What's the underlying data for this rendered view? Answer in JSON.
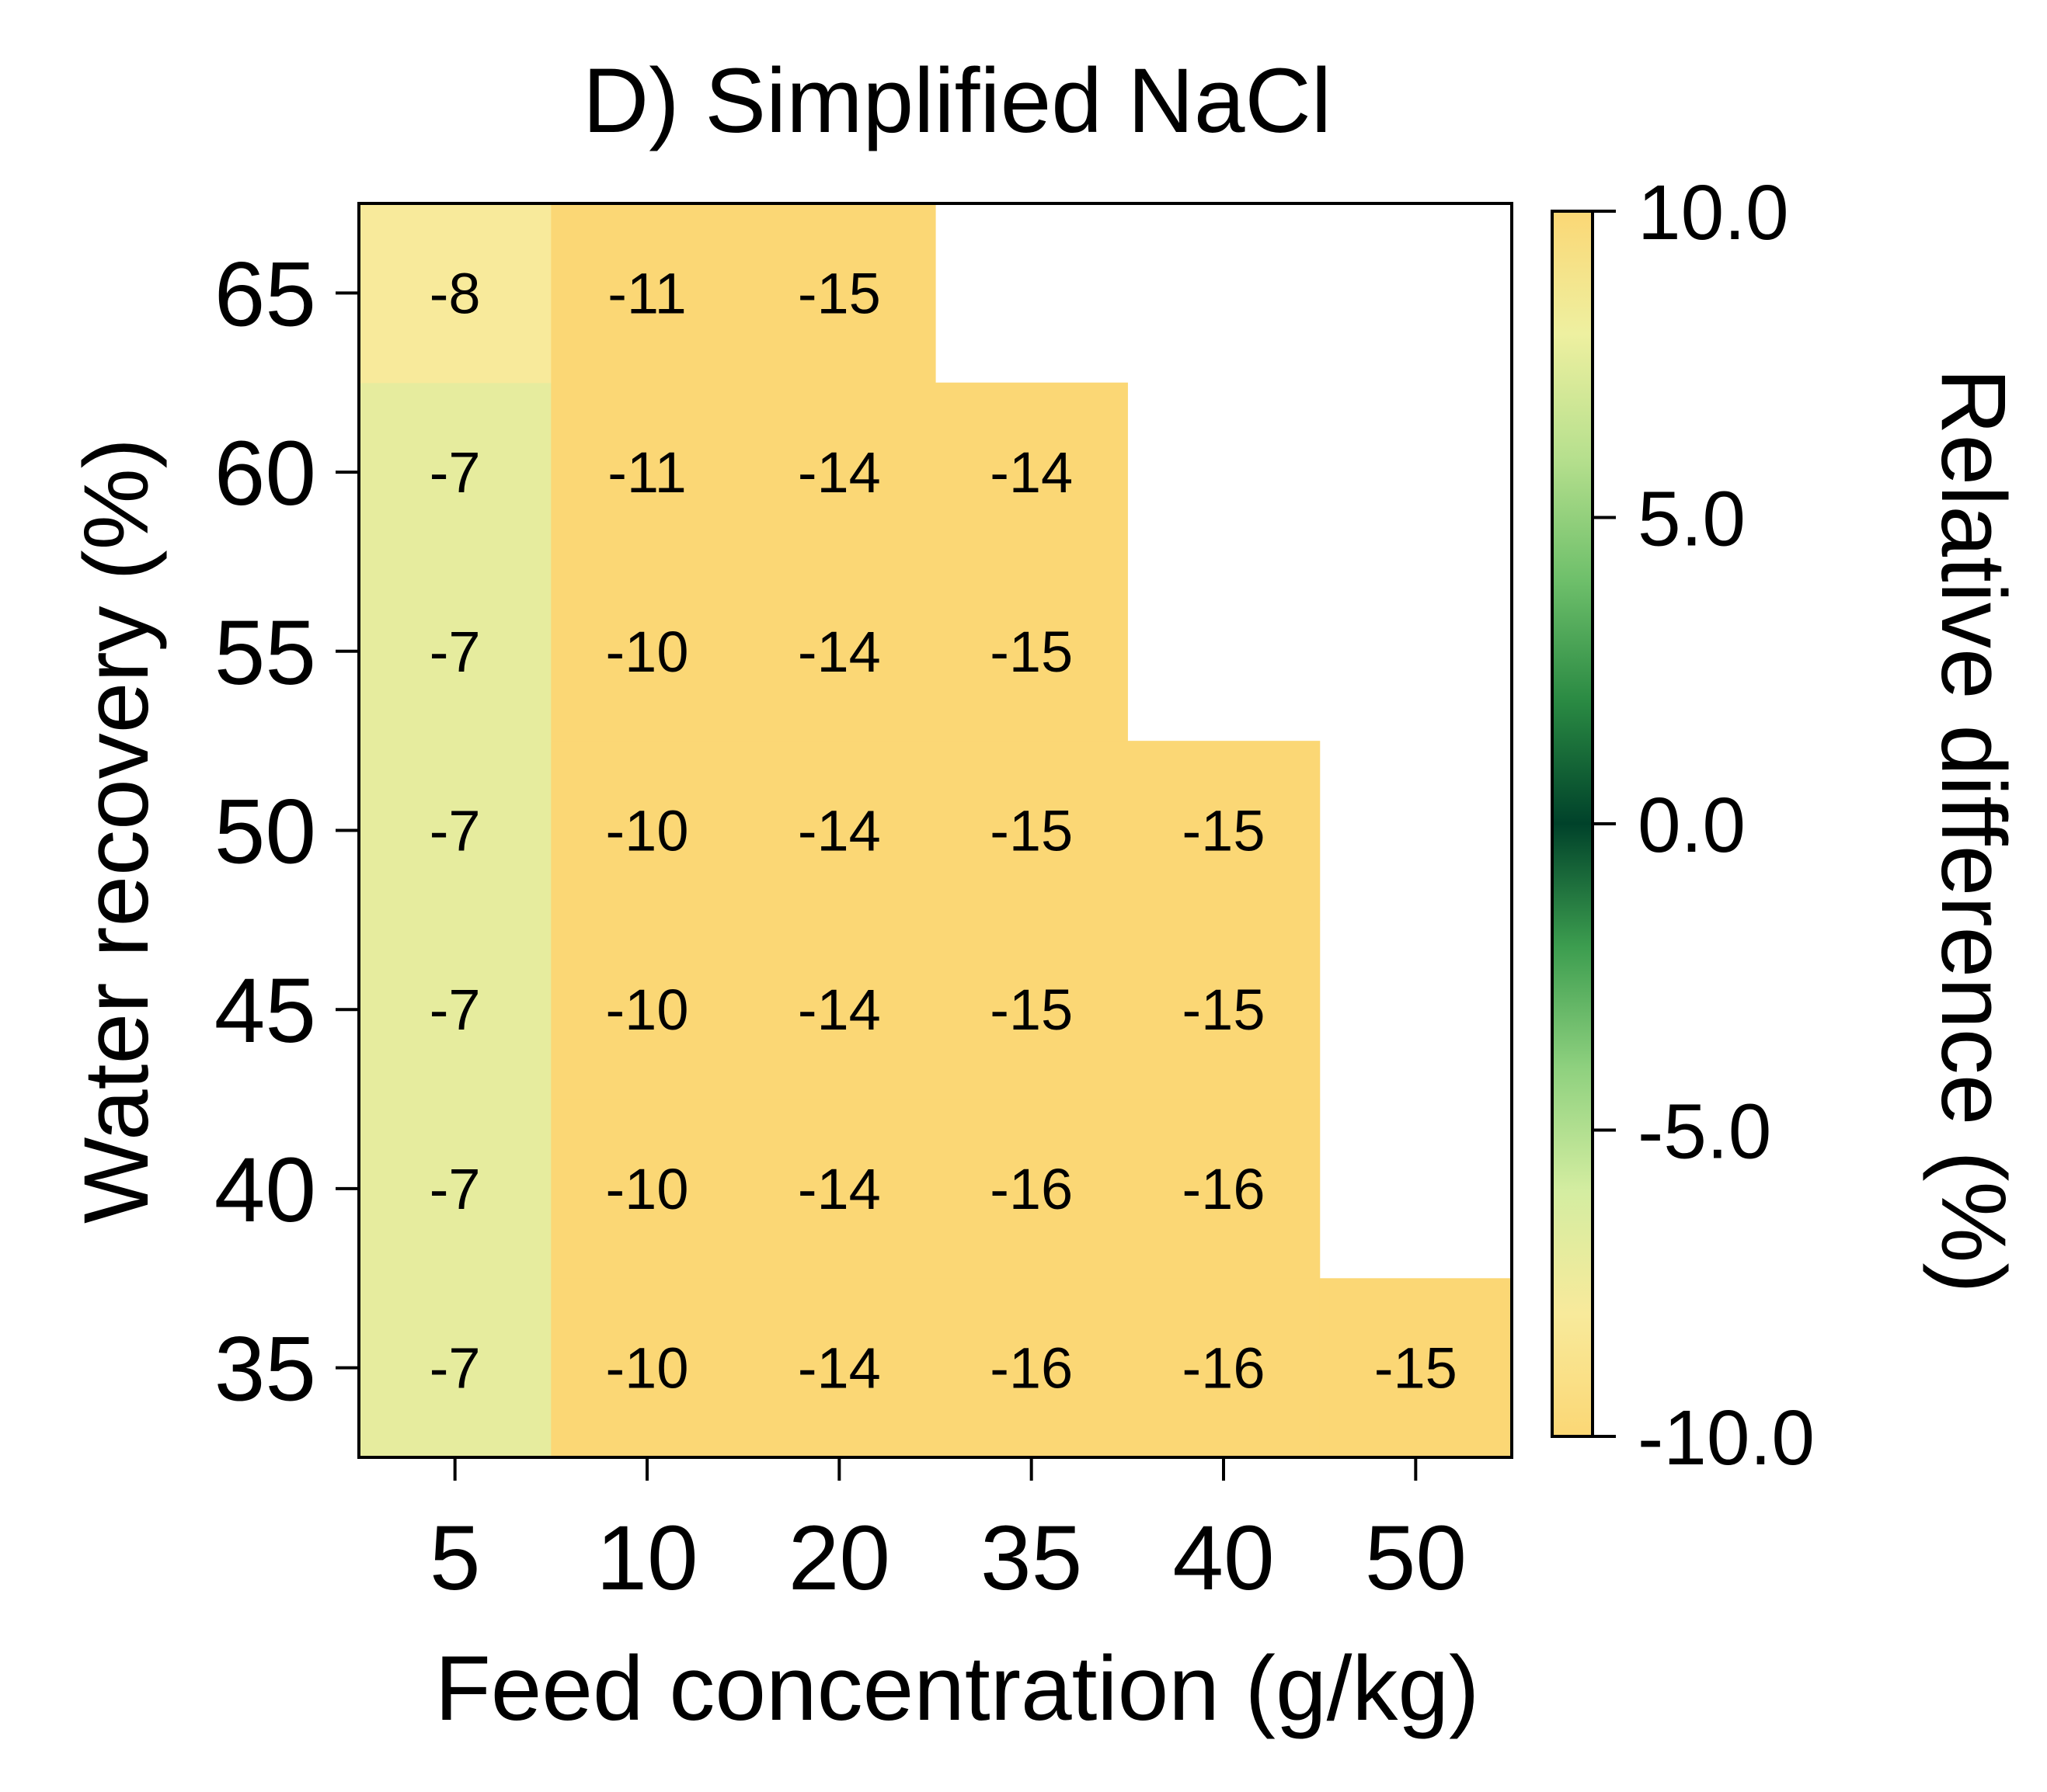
{
  "chart_data": {
    "type": "heatmap",
    "title": "D) Simplified NaCl",
    "xlabel": "Feed concentration (g/kg)",
    "ylabel": "Water recovery (%)",
    "x_categories": [
      "5",
      "10",
      "20",
      "35",
      "40",
      "50"
    ],
    "y_categories": [
      "35",
      "40",
      "45",
      "50",
      "55",
      "60",
      "65"
    ],
    "values": [
      [
        -7,
        -10,
        -14,
        -16,
        -16,
        -15
      ],
      [
        -7,
        -10,
        -14,
        -16,
        -16,
        null
      ],
      [
        -7,
        -10,
        -14,
        -15,
        -15,
        null
      ],
      [
        -7,
        -10,
        -14,
        -15,
        -15,
        null
      ],
      [
        -7,
        -10,
        -14,
        -15,
        null,
        null
      ],
      [
        -7,
        -11,
        -14,
        -14,
        null,
        null
      ],
      [
        -8,
        -11,
        -15,
        null,
        null,
        null
      ]
    ],
    "colorbar": {
      "label": "Relative difference (%)",
      "vmin": -10.0,
      "vmax": 10.0,
      "ticks": [
        -10.0,
        -5.0,
        0.0,
        5.0,
        10.0
      ],
      "tick_labels": [
        "-10.0",
        "-5.0",
        "0.0",
        "5.0",
        "10.0"
      ],
      "colormap_stops": [
        {
          "value": -10.0,
          "color": "#fbd775"
        },
        {
          "value": -8.0,
          "color": "#f8ea9b"
        },
        {
          "value": -6.0,
          "color": "#d4eda1"
        },
        {
          "value": -4.0,
          "color": "#8fd17f"
        },
        {
          "value": -2.0,
          "color": "#3c9d4f"
        },
        {
          "value": 0.0,
          "color": "#00422a"
        },
        {
          "value": 2.0,
          "color": "#2a8a43"
        },
        {
          "value": 4.0,
          "color": "#6fc06b"
        },
        {
          "value": 6.0,
          "color": "#b7e08e"
        },
        {
          "value": 8.0,
          "color": "#eef0a0"
        },
        {
          "value": 10.0,
          "color": "#fbd775"
        }
      ]
    },
    "grid": false
  }
}
